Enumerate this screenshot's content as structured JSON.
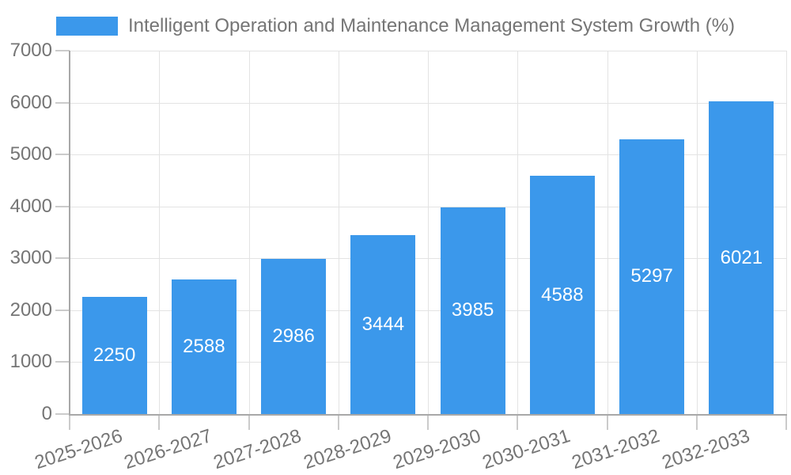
{
  "chart_data": {
    "type": "bar",
    "title": "",
    "legend": {
      "label": "Intelligent Operation and Maintenance Management System Growth (%)",
      "position": "top"
    },
    "categories": [
      "2025-2026",
      "2026-2027",
      "2027-2028",
      "2028-2029",
      "2029-2030",
      "2030-2031",
      "2031-2032",
      "2032-2033"
    ],
    "series": [
      {
        "name": "Intelligent Operation and Maintenance Management System Growth (%)",
        "values": [
          2250,
          2588,
          2986,
          3444,
          3985,
          4588,
          5297,
          6021
        ]
      }
    ],
    "data_labels_shown": true,
    "xlabel": "",
    "ylabel": "",
    "ylim": [
      0,
      7000
    ],
    "yticks": [
      0,
      1000,
      2000,
      3000,
      4000,
      5000,
      6000,
      7000
    ],
    "grid": true,
    "colors": {
      "bar": "#3b98eb",
      "bar_label": "#ffffff",
      "axis_text": "#757575",
      "gridline": "#e3e3e3",
      "axis_line": "#a8a8a8",
      "tick": "#cbcbcb",
      "background": "#ffffff"
    }
  }
}
